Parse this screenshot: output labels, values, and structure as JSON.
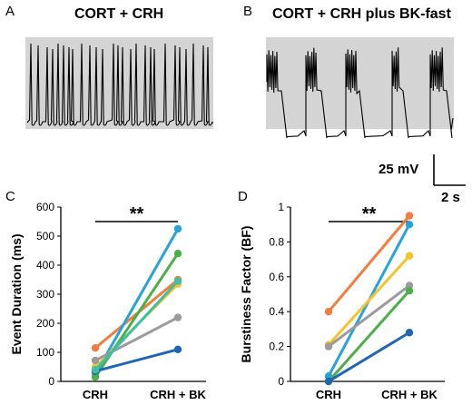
{
  "panels": {
    "A": {
      "letter": "A",
      "title": "CORT + CRH"
    },
    "B": {
      "letter": "B",
      "title": "CORT + CRH plus BK-fast"
    },
    "C": {
      "letter": "C"
    },
    "D": {
      "letter": "D"
    }
  },
  "scale_bar": {
    "voltage": "25 mV",
    "time": "2 s"
  },
  "colors": {
    "trace": "#000000",
    "shade": "#d4d4d4",
    "series": [
      "#f47c3c",
      "#27a3dc",
      "#f5c32b",
      "#9b9b9b",
      "#4daf4a",
      "#1f66b4",
      "#3fc0a6"
    ]
  },
  "chart_data": [
    {
      "type": "line",
      "panel": "C",
      "xlabel": "",
      "ylabel": "Event Duration (ms)",
      "categories": [
        "CRH",
        "CRH + BK"
      ],
      "ylim": [
        0,
        600
      ],
      "yticks": [
        0,
        100,
        200,
        300,
        400,
        500,
        600
      ],
      "significance": "**",
      "series": [
        {
          "values": [
            115,
            350
          ]
        },
        {
          "values": [
            25,
            525
          ]
        },
        {
          "values": [
            50,
            335
          ]
        },
        {
          "values": [
            72,
            220
          ]
        },
        {
          "values": [
            15,
            440
          ]
        },
        {
          "values": [
            35,
            110
          ]
        },
        {
          "values": [
            40,
            345
          ]
        }
      ]
    },
    {
      "type": "line",
      "panel": "D",
      "xlabel": "",
      "ylabel": "Burstiness Factor (BF)",
      "categories": [
        "CRH",
        "CRH + BK"
      ],
      "ylim": [
        0,
        1
      ],
      "yticks": [
        "0",
        "0.2",
        "0.4",
        "0.6",
        "0.8",
        "1"
      ],
      "significance": "**",
      "series": [
        {
          "values": [
            0.4,
            0.95
          ]
        },
        {
          "values": [
            0.03,
            0.9
          ]
        },
        {
          "values": [
            0.21,
            0.72
          ]
        },
        {
          "values": [
            0.2,
            0.55
          ]
        },
        {
          "values": [
            0.0,
            0.52
          ]
        },
        {
          "values": [
            0.0,
            0.28
          ]
        }
      ]
    }
  ]
}
